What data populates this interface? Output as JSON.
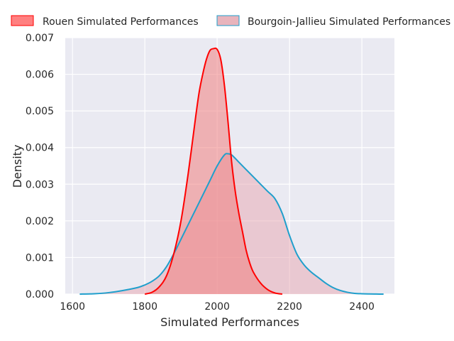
{
  "chart_data": {
    "type": "area",
    "xlabel": "Simulated Performances",
    "ylabel": "Density",
    "xlim": [
      1580,
      2490
    ],
    "ylim": [
      0,
      0.007
    ],
    "x_ticks": [
      "1600",
      "1800",
      "2000",
      "2200",
      "2400"
    ],
    "y_ticks": [
      "0.000",
      "0.001",
      "0.002",
      "0.003",
      "0.004",
      "0.005",
      "0.006",
      "0.007"
    ],
    "legend_position": "top",
    "grid": true,
    "series": [
      {
        "name": "Rouen Simulated Performances",
        "line_color": "#ff0000",
        "fill_color": "#f08080",
        "x": [
          1800,
          1820,
          1840,
          1860,
          1880,
          1900,
          1920,
          1940,
          1950,
          1960,
          1970,
          1980,
          1990,
          2000,
          2010,
          2020,
          2030,
          2040,
          2050,
          2060,
          2070,
          2080,
          2090,
          2100,
          2120,
          2140,
          2160,
          2180
        ],
        "y": [
          0.0,
          5e-05,
          0.0002,
          0.0005,
          0.0011,
          0.002,
          0.0033,
          0.0048,
          0.0055,
          0.006,
          0.0064,
          0.00665,
          0.0067,
          0.00668,
          0.0064,
          0.0057,
          0.0047,
          0.0036,
          0.0028,
          0.0022,
          0.0017,
          0.0012,
          0.00085,
          0.0006,
          0.0003,
          0.00012,
          3e-05,
          0.0
        ]
      },
      {
        "name": "Bourgoin-Jallieu Simulated Performances",
        "line_color": "#1f9fcc",
        "fill_color": "#e8a6b0",
        "x": [
          1620,
          1660,
          1700,
          1740,
          1780,
          1800,
          1820,
          1840,
          1860,
          1880,
          1900,
          1920,
          1940,
          1960,
          1980,
          2000,
          2020,
          2030,
          2040,
          2060,
          2080,
          2100,
          2120,
          2140,
          2160,
          2180,
          2200,
          2220,
          2240,
          2260,
          2280,
          2300,
          2320,
          2340,
          2360,
          2380,
          2400,
          2420,
          2440,
          2460
        ],
        "y": [
          0.0,
          1e-05,
          4e-05,
          0.0001,
          0.00018,
          0.00025,
          0.00035,
          0.0005,
          0.00075,
          0.0011,
          0.0015,
          0.0019,
          0.0023,
          0.0027,
          0.0031,
          0.0035,
          0.0038,
          0.00383,
          0.0038,
          0.0036,
          0.0034,
          0.0032,
          0.003,
          0.0028,
          0.0026,
          0.0022,
          0.0016,
          0.0011,
          0.0008,
          0.0006,
          0.00045,
          0.0003,
          0.00018,
          0.0001,
          5e-05,
          2e-05,
          1e-05,
          5e-06,
          2e-06,
          0.0
        ]
      }
    ]
  }
}
